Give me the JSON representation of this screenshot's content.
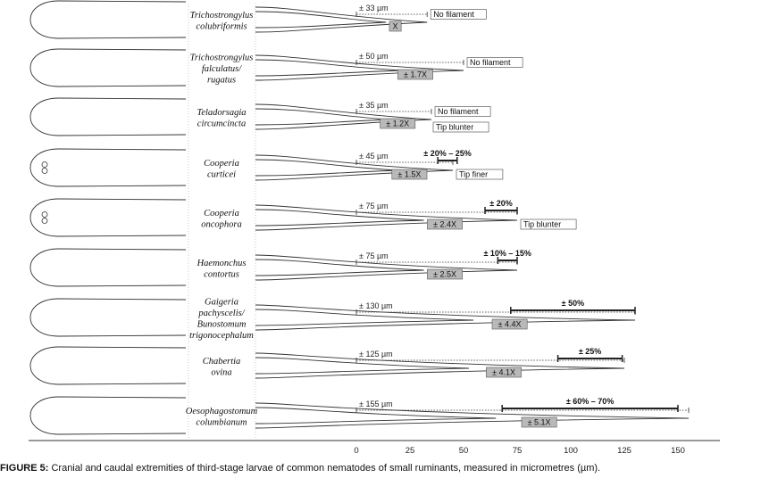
{
  "caption": {
    "label": "FIGURE 5:",
    "text": "Cranial and caudal extremities of third-stage larvae of common nematodes of small ruminants, measured in micrometres (µm)."
  },
  "axis": {
    "ticks": [
      0,
      25,
      50,
      75,
      100,
      125,
      150
    ],
    "range": [
      0,
      155
    ],
    "unit": "µm"
  },
  "species": [
    {
      "lines": [
        "Trichostrongylus",
        "colubriformis"
      ],
      "sheath_text": "± 33 µm",
      "sheath_um": 33,
      "ratio_text": "X",
      "note": "No filament",
      "note2": "",
      "pct_text": "",
      "pct_bar": null,
      "head_type": "plain"
    },
    {
      "lines": [
        "Trichostrongylus",
        "falculatus/",
        "rugatus"
      ],
      "sheath_text": "± 50 µm",
      "sheath_um": 50,
      "ratio_text": "± 1.7X",
      "note": "No filament",
      "note2": "",
      "pct_text": "",
      "pct_bar": null,
      "head_type": "plain"
    },
    {
      "lines": [
        "Teladorsagia",
        "circumcincta"
      ],
      "sheath_text": "± 35 µm",
      "sheath_um": 35,
      "ratio_text": "± 1.2X",
      "note": "No filament",
      "note2": "Tip blunter",
      "pct_text": "",
      "pct_bar": null,
      "head_type": "plain"
    },
    {
      "lines": [
        "Cooperia",
        "curticei"
      ],
      "sheath_text": "± 45 µm",
      "sheath_um": 45,
      "ratio_text": "± 1.5X",
      "note": "Tip finer",
      "note2": "",
      "pct_text": "± 20% – 25%",
      "pct_bar": [
        38,
        47
      ],
      "head_type": "cooperia"
    },
    {
      "lines": [
        "Cooperia",
        "oncophora"
      ],
      "sheath_text": "± 75 µm",
      "sheath_um": 75,
      "ratio_text": "± 2.4X",
      "note": "Tip blunter",
      "note2": "",
      "pct_text": "± 20%",
      "pct_bar": [
        60,
        75
      ],
      "head_type": "cooperia"
    },
    {
      "lines": [
        "Haemonchus",
        "contortus"
      ],
      "sheath_text": "± 75 µm",
      "sheath_um": 75,
      "ratio_text": "± 2.5X",
      "note": "",
      "note2": "",
      "pct_text": "± 10% – 15%",
      "pct_bar": [
        66,
        75
      ],
      "head_type": "plain"
    },
    {
      "lines": [
        "Gaigeria",
        "pachyscelis/",
        "Bunostomum",
        "trigonocephalum"
      ],
      "sheath_text": "± 130 µm",
      "sheath_um": 130,
      "ratio_text": "± 4.4X",
      "note": "",
      "note2": "",
      "pct_text": "± 50%",
      "pct_bar": [
        72,
        130
      ],
      "head_type": "plain"
    },
    {
      "lines": [
        "Chabertia",
        "ovina"
      ],
      "sheath_text": "± 125 µm",
      "sheath_um": 125,
      "ratio_text": "± 4.1X",
      "note": "",
      "note2": "",
      "pct_text": "± 25%",
      "pct_bar": [
        94,
        124
      ],
      "head_type": "plain"
    },
    {
      "lines": [
        "Oesophagostomum",
        "columbianum"
      ],
      "sheath_text": "± 155 µm",
      "sheath_um": 155,
      "ratio_text": "± 5.1X",
      "note": "",
      "note2": "",
      "pct_text": "± 60% – 70%",
      "pct_bar": [
        68,
        150
      ],
      "head_type": "plain"
    }
  ]
}
